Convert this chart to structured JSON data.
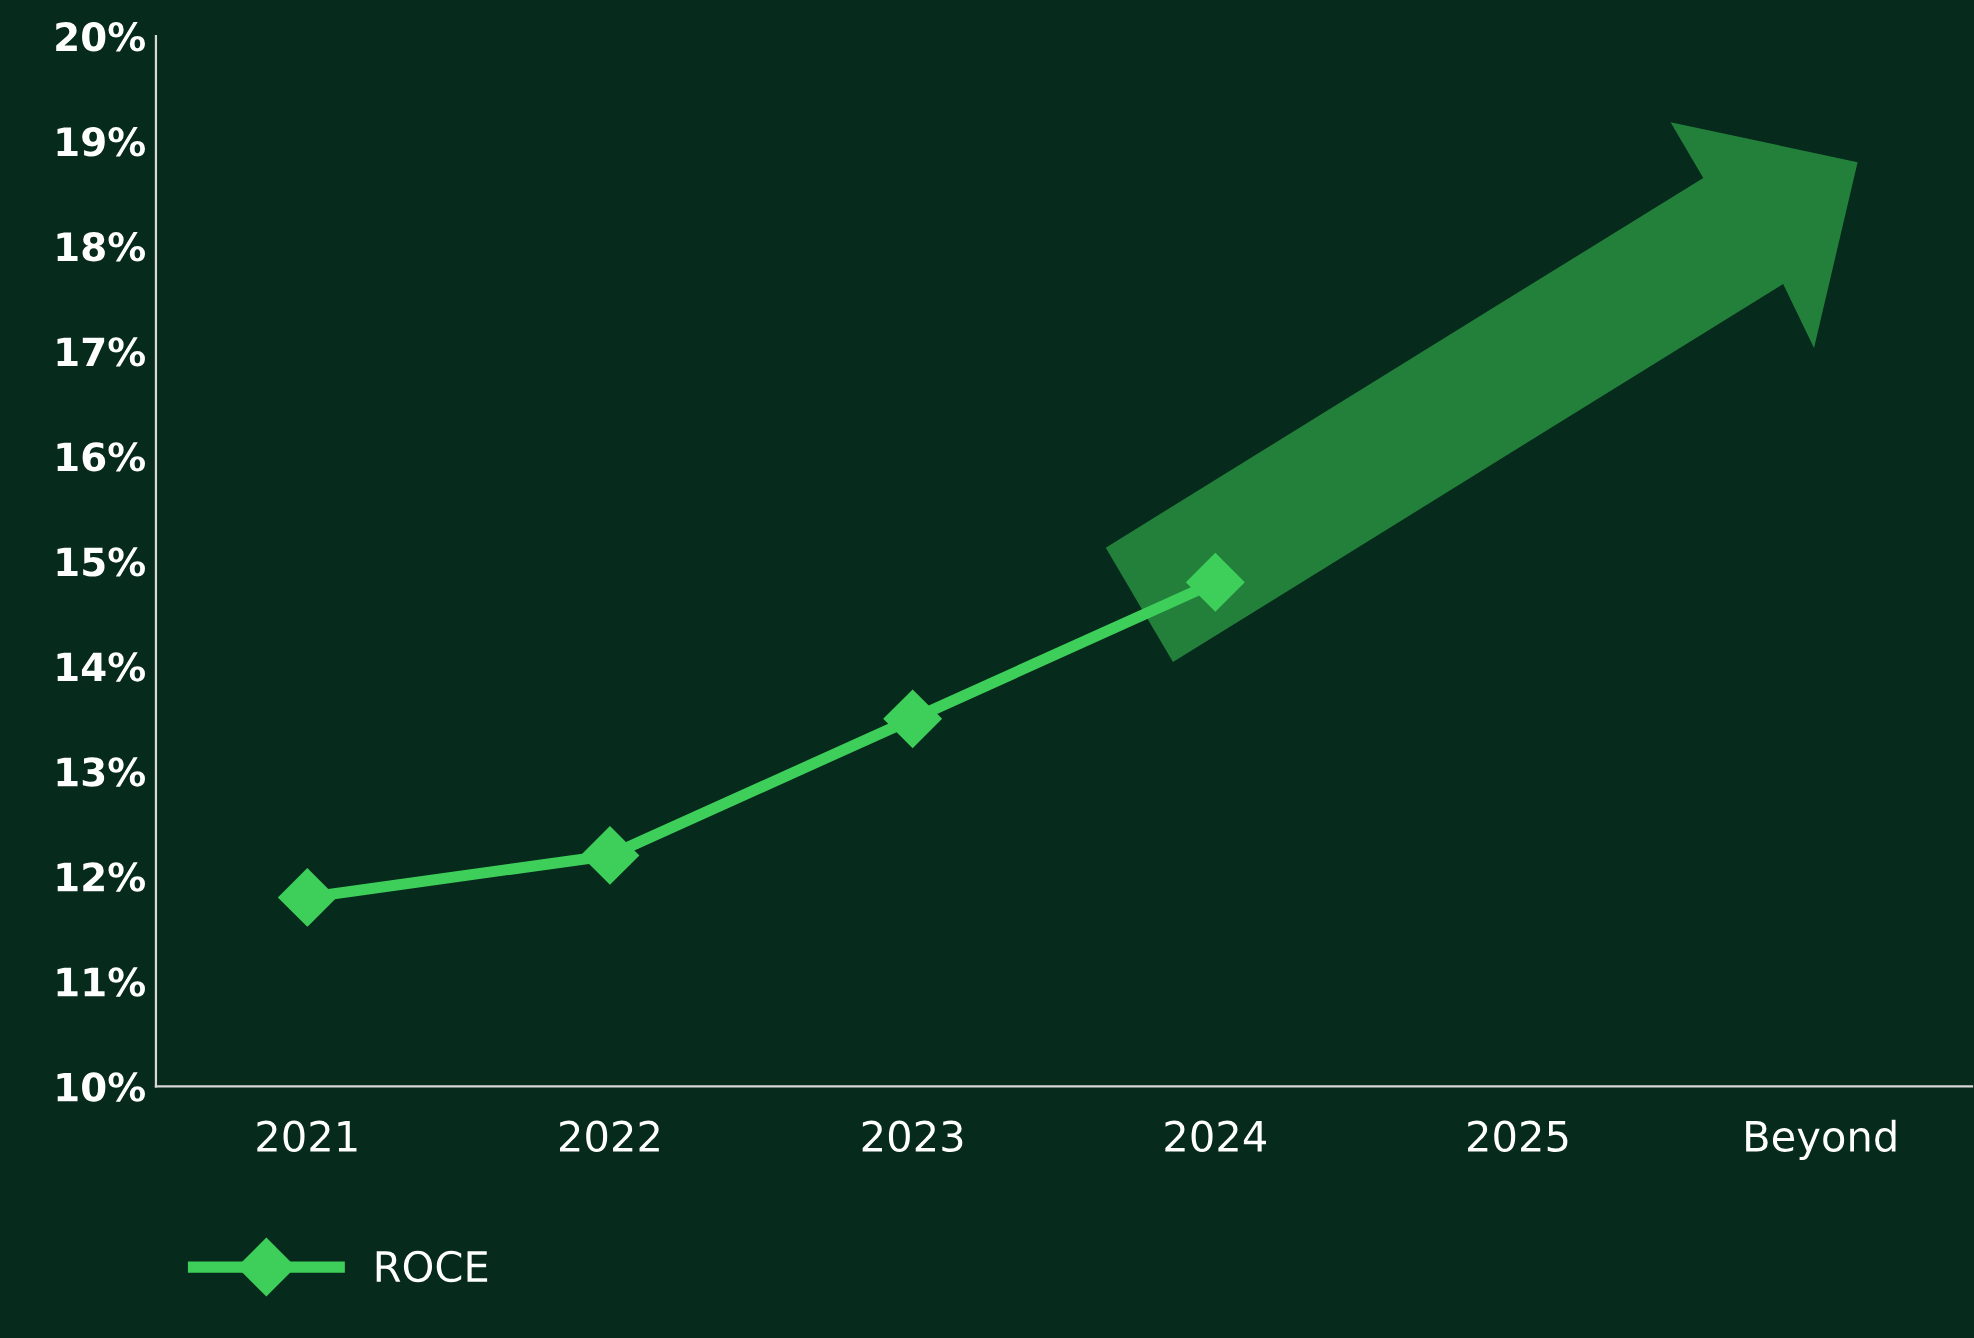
{
  "chart_data": {
    "type": "line",
    "categories": [
      "2021",
      "2022",
      "2023",
      "2024",
      "2025",
      "Beyond"
    ],
    "series": [
      {
        "name": "ROCE",
        "color": "#3ecf5a",
        "values": [
          11.8,
          12.2,
          13.5,
          14.8,
          null,
          null
        ]
      }
    ],
    "ylim": [
      10,
      20
    ],
    "yticks": [
      {
        "value": 10,
        "label": "10%"
      },
      {
        "value": 11,
        "label": "11%"
      },
      {
        "value": 12,
        "label": "12%"
      },
      {
        "value": 13,
        "label": "13%"
      },
      {
        "value": 14,
        "label": "14%"
      },
      {
        "value": 15,
        "label": "15%"
      },
      {
        "value": 16,
        "label": "16%"
      },
      {
        "value": 17,
        "label": "17%"
      },
      {
        "value": 18,
        "label": "18%"
      },
      {
        "value": 19,
        "label": "19%"
      },
      {
        "value": 20,
        "label": "20%"
      }
    ],
    "grid": false,
    "legend": "bottom left",
    "marker": "diamond",
    "line_style": "solid"
  }
}
